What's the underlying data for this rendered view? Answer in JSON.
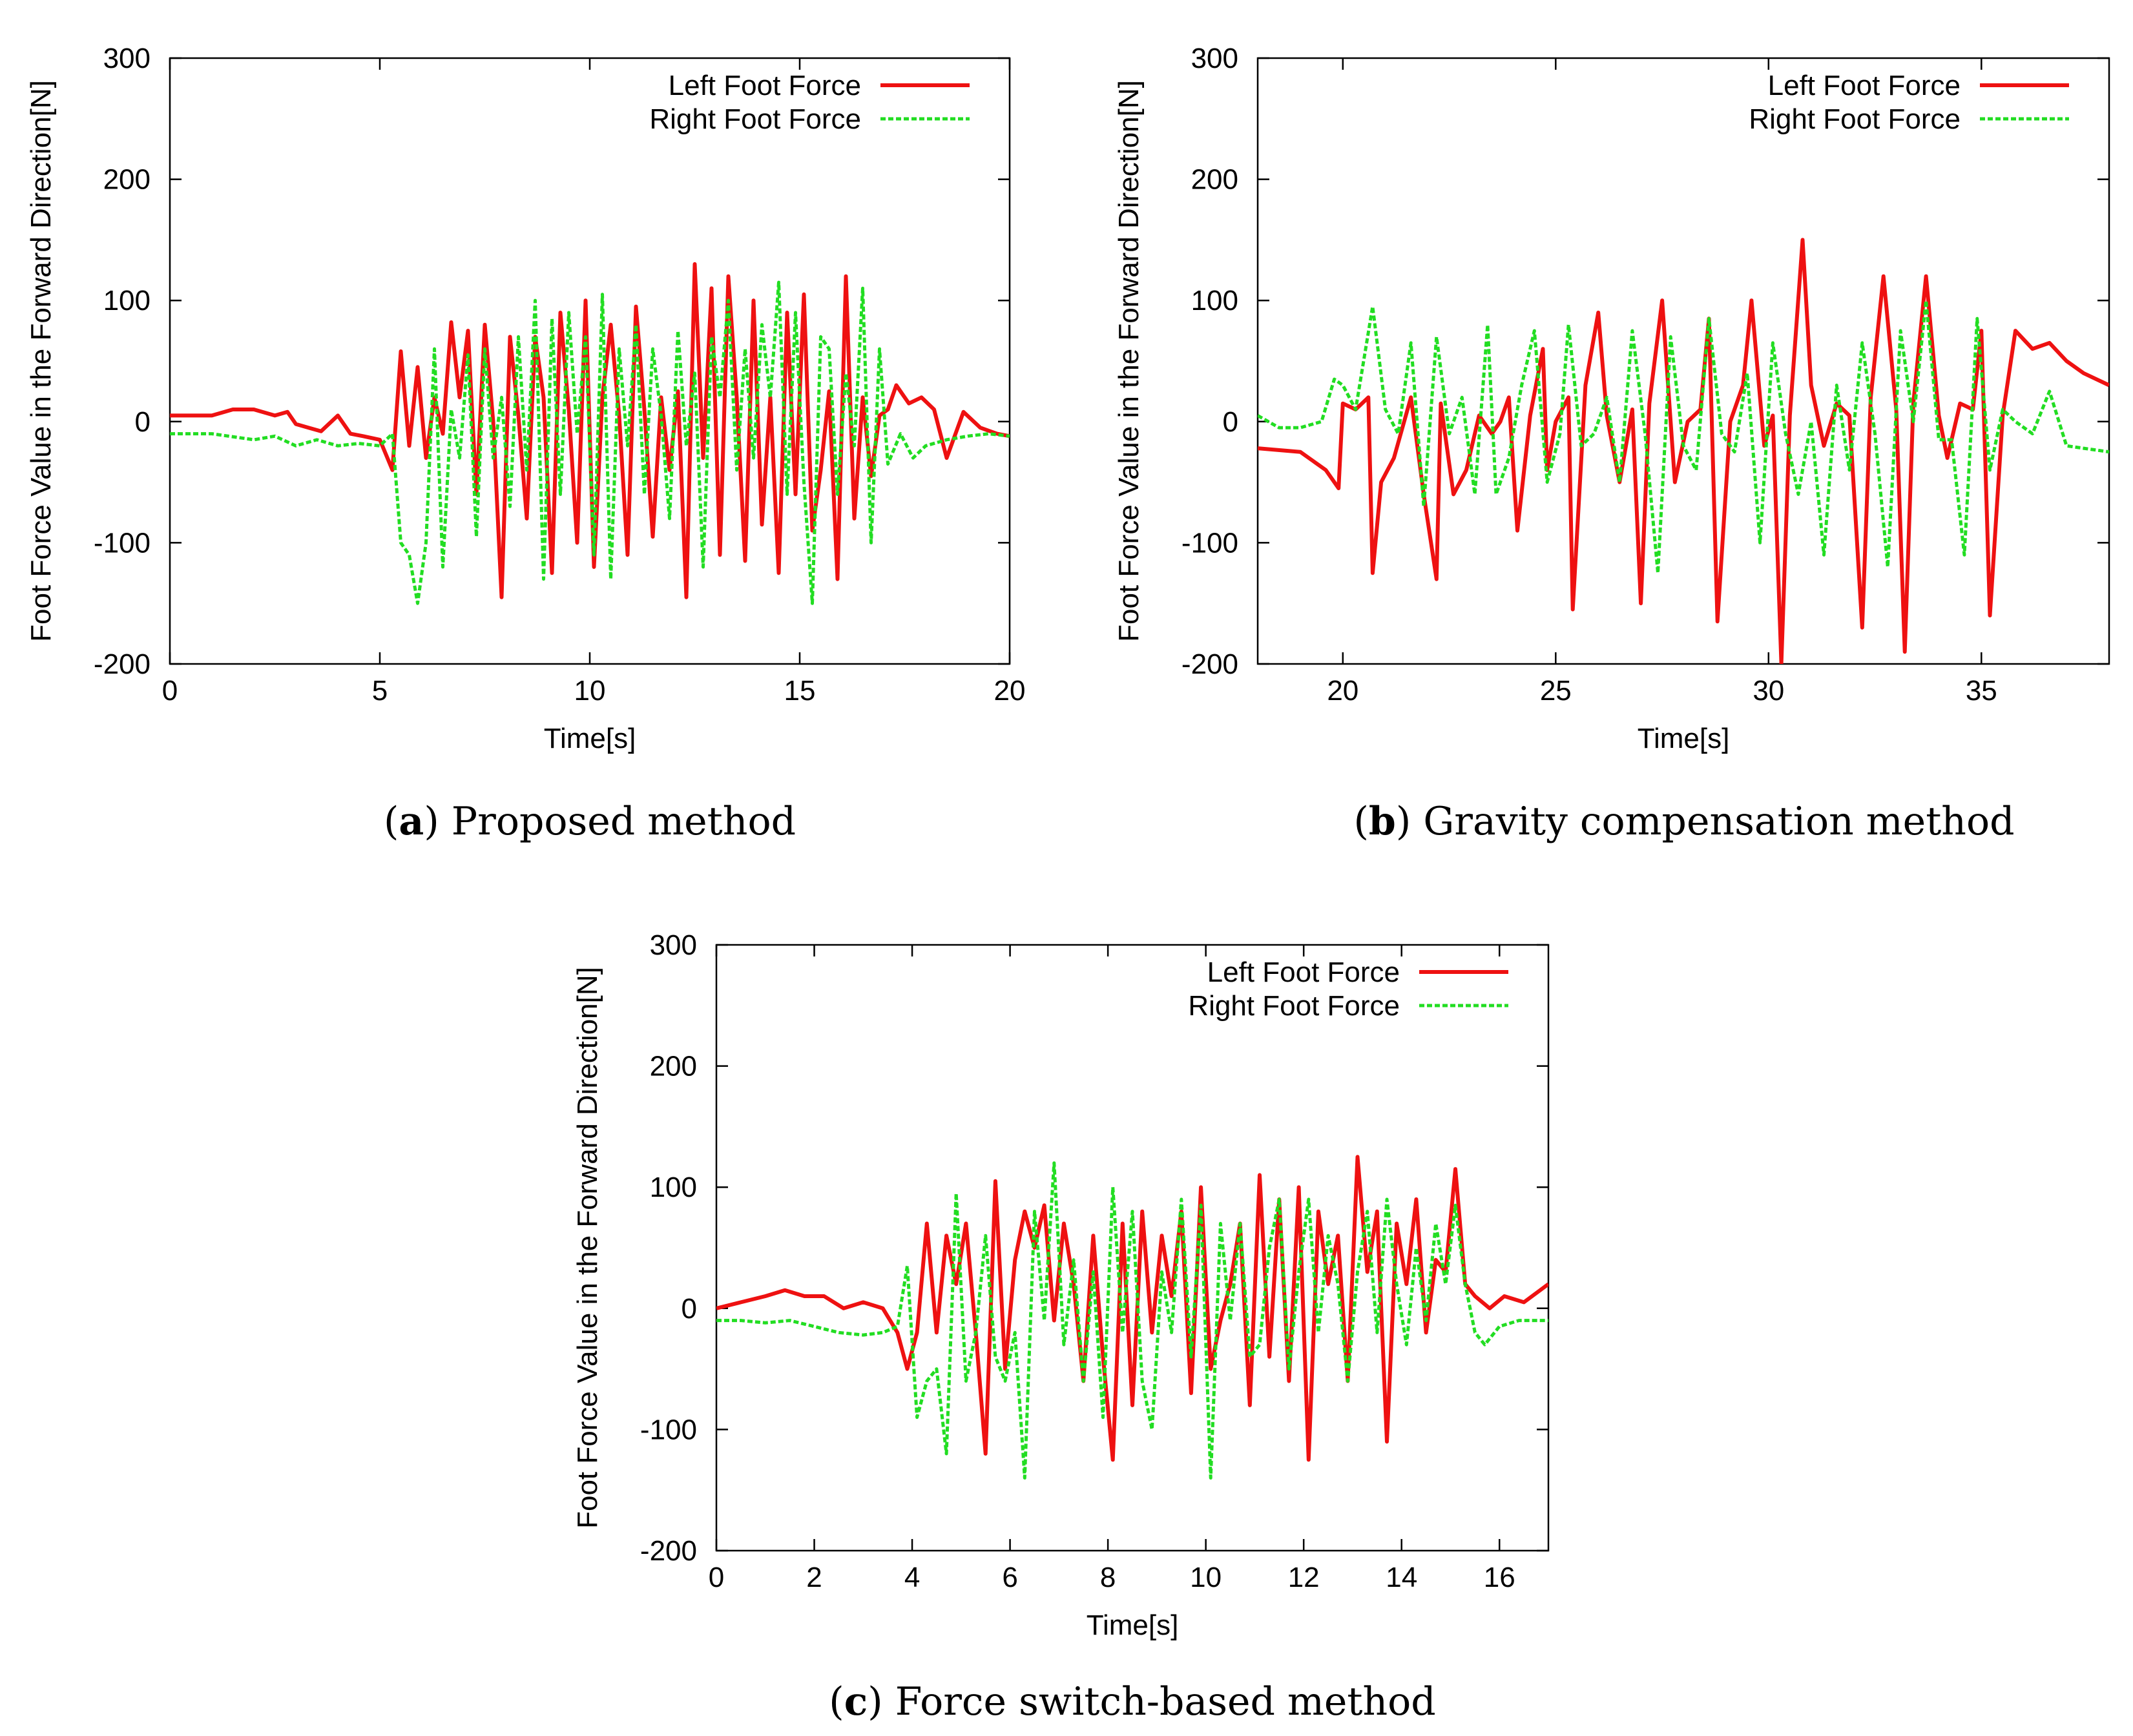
{
  "figure_name": "foot-force-comparison",
  "legend_colors": {
    "left": "#ee1111",
    "right": "#22dd22"
  },
  "chart_data": [
    {
      "id": "a",
      "type": "line",
      "caption_letter": "a",
      "caption_text": "Proposed method",
      "xlabel": "Time[s]",
      "ylabel": "Foot Force Value in the Forward Direction[N]",
      "xlim": [
        0,
        20
      ],
      "ylim": [
        -200,
        300
      ],
      "xticks": [
        0,
        5,
        10,
        15,
        20
      ],
      "yticks": [
        -200,
        -100,
        0,
        100,
        200,
        300
      ],
      "legend_position": "top-right",
      "series": [
        {
          "name": "Left Foot Force",
          "color": "#ee1111",
          "dashed": false,
          "x": [
            0,
            1,
            1.5,
            2,
            2.5,
            2.8,
            3.0,
            3.3,
            3.6,
            4.0,
            4.3,
            4.6,
            5.0,
            5.3,
            5.5,
            5.7,
            5.9,
            6.1,
            6.3,
            6.5,
            6.7,
            6.9,
            7.1,
            7.3,
            7.5,
            7.7,
            7.9,
            8.1,
            8.3,
            8.5,
            8.7,
            8.9,
            9.1,
            9.3,
            9.5,
            9.7,
            9.9,
            10.1,
            10.3,
            10.5,
            10.7,
            10.9,
            11.1,
            11.3,
            11.5,
            11.7,
            11.9,
            12.1,
            12.3,
            12.5,
            12.7,
            12.9,
            13.1,
            13.3,
            13.5,
            13.7,
            13.9,
            14.1,
            14.3,
            14.5,
            14.7,
            14.9,
            15.1,
            15.3,
            15.5,
            15.7,
            15.9,
            16.1,
            16.3,
            16.5,
            16.7,
            16.9,
            17.1,
            17.3,
            17.6,
            17.9,
            18.2,
            18.5,
            18.9,
            19.3,
            19.7,
            20
          ],
          "y": [
            5,
            5,
            10,
            10,
            5,
            8,
            -2,
            -5,
            -8,
            5,
            -10,
            -12,
            -15,
            -40,
            58,
            -20,
            45,
            -30,
            20,
            -10,
            82,
            20,
            75,
            -60,
            80,
            0,
            -145,
            70,
            5,
            -80,
            70,
            20,
            -125,
            90,
            10,
            -100,
            100,
            -120,
            20,
            80,
            5,
            -110,
            95,
            10,
            -95,
            20,
            -40,
            25,
            -145,
            130,
            -30,
            110,
            -110,
            120,
            20,
            -115,
            100,
            -85,
            20,
            -125,
            90,
            -60,
            105,
            -90,
            -40,
            25,
            -130,
            120,
            -80,
            20,
            -45,
            5,
            10,
            30,
            15,
            20,
            10,
            -30,
            8,
            -5,
            -10,
            -12
          ]
        },
        {
          "name": "Right Foot Force",
          "color": "#22dd22",
          "dashed": true,
          "x": [
            0,
            1,
            2,
            2.5,
            3.0,
            3.5,
            4.0,
            4.5,
            5.0,
            5.3,
            5.5,
            5.7,
            5.9,
            6.1,
            6.3,
            6.5,
            6.7,
            6.9,
            7.1,
            7.3,
            7.5,
            7.7,
            7.9,
            8.1,
            8.3,
            8.5,
            8.7,
            8.9,
            9.1,
            9.3,
            9.5,
            9.7,
            9.9,
            10.1,
            10.3,
            10.5,
            10.7,
            10.9,
            11.1,
            11.3,
            11.5,
            11.7,
            11.9,
            12.1,
            12.3,
            12.5,
            12.7,
            12.9,
            13.1,
            13.3,
            13.5,
            13.7,
            13.9,
            14.1,
            14.3,
            14.5,
            14.7,
            14.9,
            15.1,
            15.3,
            15.5,
            15.7,
            15.9,
            16.1,
            16.3,
            16.5,
            16.7,
            16.9,
            17.1,
            17.4,
            17.7,
            18.0,
            18.5,
            19.0,
            19.5,
            20
          ],
          "y": [
            -10,
            -10,
            -15,
            -12,
            -20,
            -15,
            -20,
            -18,
            -20,
            -10,
            -100,
            -110,
            -150,
            -100,
            60,
            -120,
            10,
            -30,
            55,
            -95,
            60,
            -30,
            20,
            -70,
            70,
            -40,
            100,
            -130,
            85,
            -60,
            90,
            -10,
            70,
            -110,
            105,
            -130,
            60,
            -20,
            80,
            -60,
            60,
            5,
            -80,
            75,
            -20,
            40,
            -120,
            70,
            20,
            100,
            -40,
            60,
            -30,
            80,
            20,
            115,
            -60,
            90,
            -50,
            -150,
            70,
            60,
            -60,
            40,
            -20,
            110,
            -100,
            60,
            -35,
            -10,
            -30,
            -20,
            -15,
            -12,
            -10,
            -12
          ]
        }
      ]
    },
    {
      "id": "b",
      "type": "line",
      "caption_letter": "b",
      "caption_text": "Gravity compensation method",
      "xlabel": "Time[s]",
      "ylabel": "Foot Force Value in the Forward Direction[N]",
      "xlim": [
        18,
        38
      ],
      "ylim": [
        -200,
        300
      ],
      "xticks": [
        20,
        25,
        30,
        35
      ],
      "yticks": [
        -200,
        -100,
        0,
        100,
        200,
        300
      ],
      "legend_position": "top-right",
      "series": [
        {
          "name": "Left Foot Force",
          "color": "#ee1111",
          "dashed": false,
          "x": [
            18,
            19,
            19.6,
            19.9,
            20.0,
            20.3,
            20.6,
            20.7,
            20.9,
            21.2,
            21.6,
            21.9,
            22.2,
            22.3,
            22.6,
            22.9,
            23.2,
            23.5,
            23.7,
            23.9,
            24.1,
            24.4,
            24.7,
            24.8,
            25.0,
            25.3,
            25.4,
            25.7,
            26.0,
            26.2,
            26.5,
            26.8,
            27.0,
            27.2,
            27.5,
            27.8,
            28.1,
            28.4,
            28.6,
            28.8,
            29.1,
            29.4,
            29.6,
            29.9,
            30.1,
            30.3,
            30.5,
            30.8,
            31.0,
            31.3,
            31.6,
            31.9,
            32.2,
            32.4,
            32.7,
            33.0,
            33.2,
            33.4,
            33.7,
            34.0,
            34.2,
            34.5,
            34.8,
            35.0,
            35.2,
            35.5,
            35.8,
            36.2,
            36.6,
            37.0,
            37.4,
            38
          ],
          "y": [
            -22,
            -25,
            -40,
            -55,
            15,
            10,
            20,
            -125,
            -50,
            -30,
            20,
            -60,
            -130,
            15,
            -60,
            -40,
            5,
            -10,
            0,
            20,
            -90,
            5,
            60,
            -40,
            0,
            20,
            -155,
            30,
            90,
            5,
            -50,
            10,
            -150,
            15,
            100,
            -50,
            0,
            10,
            85,
            -165,
            0,
            30,
            100,
            -20,
            5,
            -200,
            5,
            150,
            30,
            -20,
            15,
            5,
            -170,
            20,
            120,
            10,
            -190,
            15,
            120,
            5,
            -30,
            15,
            10,
            75,
            -160,
            5,
            75,
            60,
            65,
            50,
            40,
            30
          ]
        },
        {
          "name": "Right Foot Force",
          "color": "#22dd22",
          "dashed": true,
          "x": [
            18,
            18.5,
            19.0,
            19.5,
            19.8,
            20.0,
            20.3,
            20.7,
            21.0,
            21.3,
            21.6,
            21.9,
            22.2,
            22.5,
            22.8,
            23.1,
            23.4,
            23.6,
            23.9,
            24.2,
            24.5,
            24.8,
            25.1,
            25.3,
            25.6,
            25.9,
            26.2,
            26.5,
            26.8,
            27.1,
            27.4,
            27.7,
            28.0,
            28.3,
            28.6,
            28.9,
            29.2,
            29.5,
            29.8,
            30.1,
            30.4,
            30.7,
            31.0,
            31.3,
            31.6,
            31.9,
            32.2,
            32.5,
            32.8,
            33.1,
            33.4,
            33.7,
            34.0,
            34.3,
            34.6,
            34.9,
            35.2,
            35.5,
            35.8,
            36.2,
            36.6,
            37.0,
            37.4,
            38
          ],
          "y": [
            5,
            -5,
            -5,
            0,
            35,
            30,
            10,
            95,
            10,
            -10,
            65,
            -70,
            70,
            -10,
            20,
            -60,
            80,
            -60,
            -30,
            30,
            75,
            -50,
            -10,
            80,
            -20,
            -10,
            20,
            -50,
            75,
            -10,
            -125,
            70,
            -20,
            -40,
            85,
            -10,
            -25,
            40,
            -100,
            65,
            -10,
            -60,
            0,
            -110,
            30,
            -40,
            65,
            -10,
            -120,
            75,
            0,
            100,
            -15,
            -15,
            -110,
            85,
            -40,
            10,
            0,
            -10,
            25,
            -20,
            -22,
            -25
          ]
        }
      ]
    },
    {
      "id": "c",
      "type": "line",
      "caption_letter": "c",
      "caption_text": "Force switch-based method",
      "xlabel": "Time[s]",
      "ylabel": "Foot Force Value in the Forward Direction[N]",
      "xlim": [
        0,
        17
      ],
      "ylim": [
        -200,
        300
      ],
      "xticks": [
        0,
        2,
        4,
        6,
        8,
        10,
        12,
        14,
        16
      ],
      "yticks": [
        -200,
        -100,
        0,
        100,
        200,
        300
      ],
      "legend_position": "top-right",
      "series": [
        {
          "name": "Left Foot Force",
          "color": "#ee1111",
          "dashed": false,
          "x": [
            0,
            0.5,
            1.0,
            1.4,
            1.8,
            2.2,
            2.6,
            3.0,
            3.4,
            3.7,
            3.9,
            4.1,
            4.3,
            4.5,
            4.7,
            4.9,
            5.1,
            5.3,
            5.5,
            5.7,
            5.9,
            6.1,
            6.3,
            6.5,
            6.7,
            6.9,
            7.1,
            7.3,
            7.5,
            7.7,
            7.9,
            8.1,
            8.3,
            8.5,
            8.7,
            8.9,
            9.1,
            9.3,
            9.5,
            9.7,
            9.9,
            10.1,
            10.3,
            10.5,
            10.7,
            10.9,
            11.1,
            11.3,
            11.5,
            11.7,
            11.9,
            12.1,
            12.3,
            12.5,
            12.7,
            12.9,
            13.1,
            13.3,
            13.5,
            13.7,
            13.9,
            14.1,
            14.3,
            14.5,
            14.7,
            14.9,
            15.1,
            15.3,
            15.5,
            15.8,
            16.1,
            16.5,
            17.0
          ],
          "y": [
            0,
            5,
            10,
            15,
            10,
            10,
            0,
            5,
            0,
            -20,
            -50,
            -20,
            70,
            -20,
            60,
            20,
            70,
            -20,
            -120,
            105,
            -50,
            40,
            80,
            50,
            85,
            -10,
            70,
            20,
            -60,
            60,
            -40,
            -125,
            70,
            -80,
            80,
            -20,
            60,
            10,
            80,
            -70,
            100,
            -50,
            -10,
            20,
            70,
            -80,
            110,
            -40,
            90,
            -60,
            100,
            -125,
            80,
            20,
            60,
            -60,
            125,
            30,
            80,
            -110,
            70,
            20,
            90,
            -20,
            40,
            30,
            115,
            20,
            10,
            0,
            10,
            5,
            20
          ]
        },
        {
          "name": "Right Foot Force",
          "color": "#22dd22",
          "dashed": true,
          "x": [
            0,
            0.5,
            1.0,
            1.5,
            2.0,
            2.5,
            3.0,
            3.4,
            3.7,
            3.9,
            4.1,
            4.3,
            4.5,
            4.7,
            4.9,
            5.1,
            5.3,
            5.5,
            5.7,
            5.9,
            6.1,
            6.3,
            6.5,
            6.7,
            6.9,
            7.1,
            7.3,
            7.5,
            7.7,
            7.9,
            8.1,
            8.3,
            8.5,
            8.7,
            8.9,
            9.1,
            9.3,
            9.5,
            9.7,
            9.9,
            10.1,
            10.3,
            10.5,
            10.7,
            10.9,
            11.1,
            11.3,
            11.5,
            11.7,
            11.9,
            12.1,
            12.3,
            12.5,
            12.7,
            12.9,
            13.1,
            13.3,
            13.5,
            13.7,
            13.9,
            14.1,
            14.3,
            14.5,
            14.7,
            14.9,
            15.1,
            15.3,
            15.5,
            15.7,
            16.0,
            16.4,
            17.0
          ],
          "y": [
            -10,
            -10,
            -12,
            -10,
            -15,
            -20,
            -22,
            -20,
            -15,
            35,
            -90,
            -60,
            -50,
            -120,
            95,
            -60,
            -20,
            60,
            -40,
            -60,
            -20,
            -140,
            80,
            -10,
            120,
            -30,
            40,
            -60,
            30,
            -90,
            100,
            -20,
            80,
            -60,
            -100,
            30,
            -20,
            90,
            -40,
            85,
            -140,
            70,
            -10,
            70,
            -40,
            -30,
            50,
            90,
            -50,
            30,
            90,
            -20,
            60,
            20,
            -60,
            30,
            80,
            -20,
            90,
            20,
            -30,
            50,
            -10,
            70,
            20,
            85,
            20,
            -20,
            -30,
            -15,
            -10,
            -10
          ]
        }
      ]
    }
  ]
}
